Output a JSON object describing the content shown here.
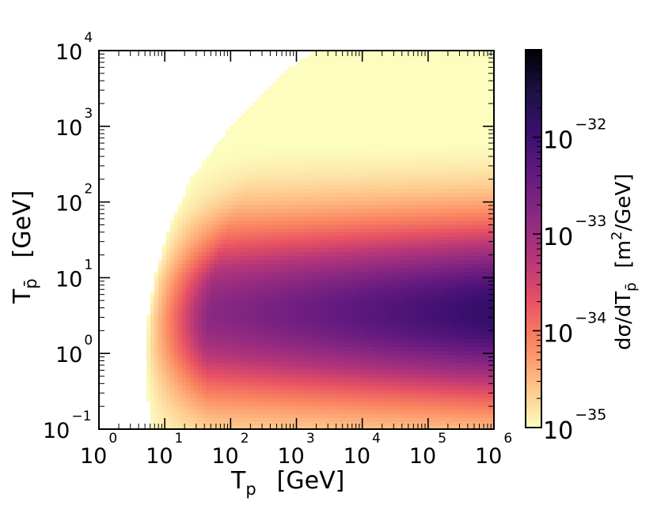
{
  "chart_data": {
    "type": "heatmap",
    "title": "",
    "xlabel": "T",
    "xlabel_sub": "p",
    "xlabel_unit": "[GeV]",
    "ylabel": "T",
    "ylabel_sub": "p̄",
    "ylabel_unit": "[GeV]",
    "x_scale": "log",
    "y_scale": "log",
    "xlim": [
      1,
      1000000
    ],
    "ylim": [
      0.1,
      10000
    ],
    "x_ticks": [
      {
        "base": "10",
        "exp": "0"
      },
      {
        "base": "10",
        "exp": "1"
      },
      {
        "base": "10",
        "exp": "2"
      },
      {
        "base": "10",
        "exp": "3"
      },
      {
        "base": "10",
        "exp": "4"
      },
      {
        "base": "10",
        "exp": "5"
      },
      {
        "base": "10",
        "exp": "6"
      }
    ],
    "y_ticks": [
      {
        "base": "10",
        "exp": "−1"
      },
      {
        "base": "10",
        "exp": "0"
      },
      {
        "base": "10",
        "exp": "1"
      },
      {
        "base": "10",
        "exp": "2"
      },
      {
        "base": "10",
        "exp": "3"
      },
      {
        "base": "10",
        "exp": "4"
      }
    ],
    "colorbar": {
      "label": "dσ/dT",
      "label_sub": "p̄",
      "label_unit_pre": "[m",
      "label_unit_sup": "2",
      "label_unit_post": "/GeV]",
      "scale": "log",
      "range": [
        1e-35,
        8e-32
      ],
      "ticks": [
        {
          "base": "10",
          "exp": "−35"
        },
        {
          "base": "10",
          "exp": "−34"
        },
        {
          "base": "10",
          "exp": "−33"
        },
        {
          "base": "10",
          "exp": "−32"
        }
      ],
      "colormap": "magma_r",
      "colors": [
        "#fcfdbf",
        "#fec287",
        "#fb8761",
        "#e75263",
        "#b63679",
        "#8c2981",
        "#641a80",
        "#3b0f70",
        "#1d1147",
        "#000004"
      ]
    },
    "kinematic_boundary_Tpbar_GeV": [
      [
        6,
        0.12
      ],
      [
        5.5,
        0.3
      ],
      [
        5.2,
        1.0
      ],
      [
        5.6,
        3.0
      ],
      [
        7,
        10
      ],
      [
        12,
        50
      ],
      [
        25,
        200
      ],
      [
        100,
        1000
      ],
      [
        600,
        5000
      ],
      [
        2000,
        10000
      ]
    ],
    "peak_region": {
      "Tp_GeV": [
        100000,
        1000000
      ],
      "Tpbar_GeV": [
        1,
        10
      ],
      "value": 8e-32
    }
  }
}
